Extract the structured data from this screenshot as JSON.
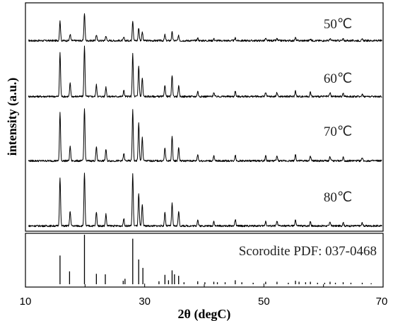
{
  "chart_data": {
    "type": "line",
    "xlabel": "2θ (degC)",
    "ylabel": "intensity (a.u.)",
    "xlim": [
      10,
      70
    ],
    "x_ticks": [
      "10",
      "30",
      "50",
      "70"
    ],
    "series": [
      {
        "name": "50℃",
        "peaks": [
          {
            "x": 15.8,
            "y": 60
          },
          {
            "x": 17.5,
            "y": 20
          },
          {
            "x": 19.9,
            "y": 85
          },
          {
            "x": 21.9,
            "y": 18
          },
          {
            "x": 23.5,
            "y": 15
          },
          {
            "x": 26.5,
            "y": 10
          },
          {
            "x": 28.0,
            "y": 62
          },
          {
            "x": 29.0,
            "y": 40
          },
          {
            "x": 29.6,
            "y": 28
          },
          {
            "x": 33.4,
            "y": 18
          },
          {
            "x": 34.6,
            "y": 26
          },
          {
            "x": 35.7,
            "y": 15
          },
          {
            "x": 38.9,
            "y": 8
          },
          {
            "x": 41.6,
            "y": 6
          },
          {
            "x": 45.2,
            "y": 8
          },
          {
            "x": 50.3,
            "y": 6
          },
          {
            "x": 52.2,
            "y": 6
          },
          {
            "x": 55.3,
            "y": 9
          },
          {
            "x": 57.8,
            "y": 6
          },
          {
            "x": 61.1,
            "y": 6
          },
          {
            "x": 63.3,
            "y": 5
          },
          {
            "x": 66.5,
            "y": 4
          }
        ]
      },
      {
        "name": "60℃",
        "peaks": [
          {
            "x": 15.8,
            "y": 82
          },
          {
            "x": 17.5,
            "y": 25
          },
          {
            "x": 19.9,
            "y": 95
          },
          {
            "x": 21.9,
            "y": 22
          },
          {
            "x": 23.5,
            "y": 18
          },
          {
            "x": 26.5,
            "y": 12
          },
          {
            "x": 28.0,
            "y": 80
          },
          {
            "x": 29.0,
            "y": 58
          },
          {
            "x": 29.6,
            "y": 35
          },
          {
            "x": 33.4,
            "y": 22
          },
          {
            "x": 34.6,
            "y": 40
          },
          {
            "x": 35.7,
            "y": 20
          },
          {
            "x": 38.9,
            "y": 10
          },
          {
            "x": 41.6,
            "y": 8
          },
          {
            "x": 45.2,
            "y": 10
          },
          {
            "x": 50.3,
            "y": 8
          },
          {
            "x": 52.2,
            "y": 8
          },
          {
            "x": 55.3,
            "y": 11
          },
          {
            "x": 57.8,
            "y": 8
          },
          {
            "x": 61.1,
            "y": 7
          },
          {
            "x": 63.3,
            "y": 6
          },
          {
            "x": 66.5,
            "y": 5
          }
        ]
      },
      {
        "name": "70℃",
        "peaks": [
          {
            "x": 15.8,
            "y": 90
          },
          {
            "x": 17.5,
            "y": 28
          },
          {
            "x": 19.9,
            "y": 100
          },
          {
            "x": 21.9,
            "y": 26
          },
          {
            "x": 23.5,
            "y": 22
          },
          {
            "x": 26.5,
            "y": 14
          },
          {
            "x": 28.0,
            "y": 96
          },
          {
            "x": 29.0,
            "y": 72
          },
          {
            "x": 29.6,
            "y": 45
          },
          {
            "x": 33.4,
            "y": 25
          },
          {
            "x": 34.6,
            "y": 46
          },
          {
            "x": 35.7,
            "y": 25
          },
          {
            "x": 38.9,
            "y": 12
          },
          {
            "x": 41.6,
            "y": 9
          },
          {
            "x": 45.2,
            "y": 11
          },
          {
            "x": 50.3,
            "y": 9
          },
          {
            "x": 52.2,
            "y": 9
          },
          {
            "x": 55.3,
            "y": 12
          },
          {
            "x": 57.8,
            "y": 9
          },
          {
            "x": 61.1,
            "y": 8
          },
          {
            "x": 63.3,
            "y": 7
          },
          {
            "x": 66.5,
            "y": 6
          }
        ]
      },
      {
        "name": "80℃",
        "peaks": [
          {
            "x": 15.8,
            "y": 92
          },
          {
            "x": 17.5,
            "y": 28
          },
          {
            "x": 19.9,
            "y": 100
          },
          {
            "x": 21.9,
            "y": 26
          },
          {
            "x": 23.5,
            "y": 22
          },
          {
            "x": 26.5,
            "y": 14
          },
          {
            "x": 28.0,
            "y": 98
          },
          {
            "x": 29.0,
            "y": 60
          },
          {
            "x": 29.6,
            "y": 40
          },
          {
            "x": 33.4,
            "y": 26
          },
          {
            "x": 34.6,
            "y": 42
          },
          {
            "x": 35.7,
            "y": 28
          },
          {
            "x": 38.9,
            "y": 12
          },
          {
            "x": 41.6,
            "y": 9
          },
          {
            "x": 45.2,
            "y": 12
          },
          {
            "x": 50.3,
            "y": 9
          },
          {
            "x": 52.2,
            "y": 9
          },
          {
            "x": 55.3,
            "y": 12
          },
          {
            "x": 57.8,
            "y": 9
          },
          {
            "x": 61.1,
            "y": 8
          },
          {
            "x": 63.3,
            "y": 7
          },
          {
            "x": 66.5,
            "y": 6
          }
        ]
      }
    ],
    "reference": {
      "label": "Scorodite PDF: 037-0468",
      "lines": [
        {
          "x": 15.8,
          "y": 58
        },
        {
          "x": 17.4,
          "y": 26
        },
        {
          "x": 19.9,
          "y": 100
        },
        {
          "x": 21.9,
          "y": 21
        },
        {
          "x": 23.4,
          "y": 20
        },
        {
          "x": 26.4,
          "y": 7
        },
        {
          "x": 26.7,
          "y": 11
        },
        {
          "x": 28.0,
          "y": 92
        },
        {
          "x": 29.0,
          "y": 50
        },
        {
          "x": 29.7,
          "y": 33
        },
        {
          "x": 32.4,
          "y": 6
        },
        {
          "x": 33.4,
          "y": 19
        },
        {
          "x": 34.0,
          "y": 8
        },
        {
          "x": 34.6,
          "y": 28
        },
        {
          "x": 35.0,
          "y": 20
        },
        {
          "x": 35.7,
          "y": 17
        },
        {
          "x": 36.6,
          "y": 4
        },
        {
          "x": 38.9,
          "y": 6
        },
        {
          "x": 40.1,
          "y": 4
        },
        {
          "x": 41.6,
          "y": 5
        },
        {
          "x": 42.2,
          "y": 4
        },
        {
          "x": 43.5,
          "y": 4
        },
        {
          "x": 45.2,
          "y": 8
        },
        {
          "x": 46.3,
          "y": 4
        },
        {
          "x": 48.2,
          "y": 3
        },
        {
          "x": 50.3,
          "y": 5
        },
        {
          "x": 52.2,
          "y": 5
        },
        {
          "x": 54.1,
          "y": 3
        },
        {
          "x": 55.3,
          "y": 7
        },
        {
          "x": 55.9,
          "y": 5
        },
        {
          "x": 57.0,
          "y": 4
        },
        {
          "x": 57.8,
          "y": 5
        },
        {
          "x": 59.0,
          "y": 3
        },
        {
          "x": 60.2,
          "y": 3
        },
        {
          "x": 61.1,
          "y": 5
        },
        {
          "x": 62.0,
          "y": 3
        },
        {
          "x": 63.3,
          "y": 4
        },
        {
          "x": 64.6,
          "y": 3
        },
        {
          "x": 66.5,
          "y": 3
        },
        {
          "x": 68.0,
          "y": 2
        }
      ]
    },
    "grid": false
  }
}
